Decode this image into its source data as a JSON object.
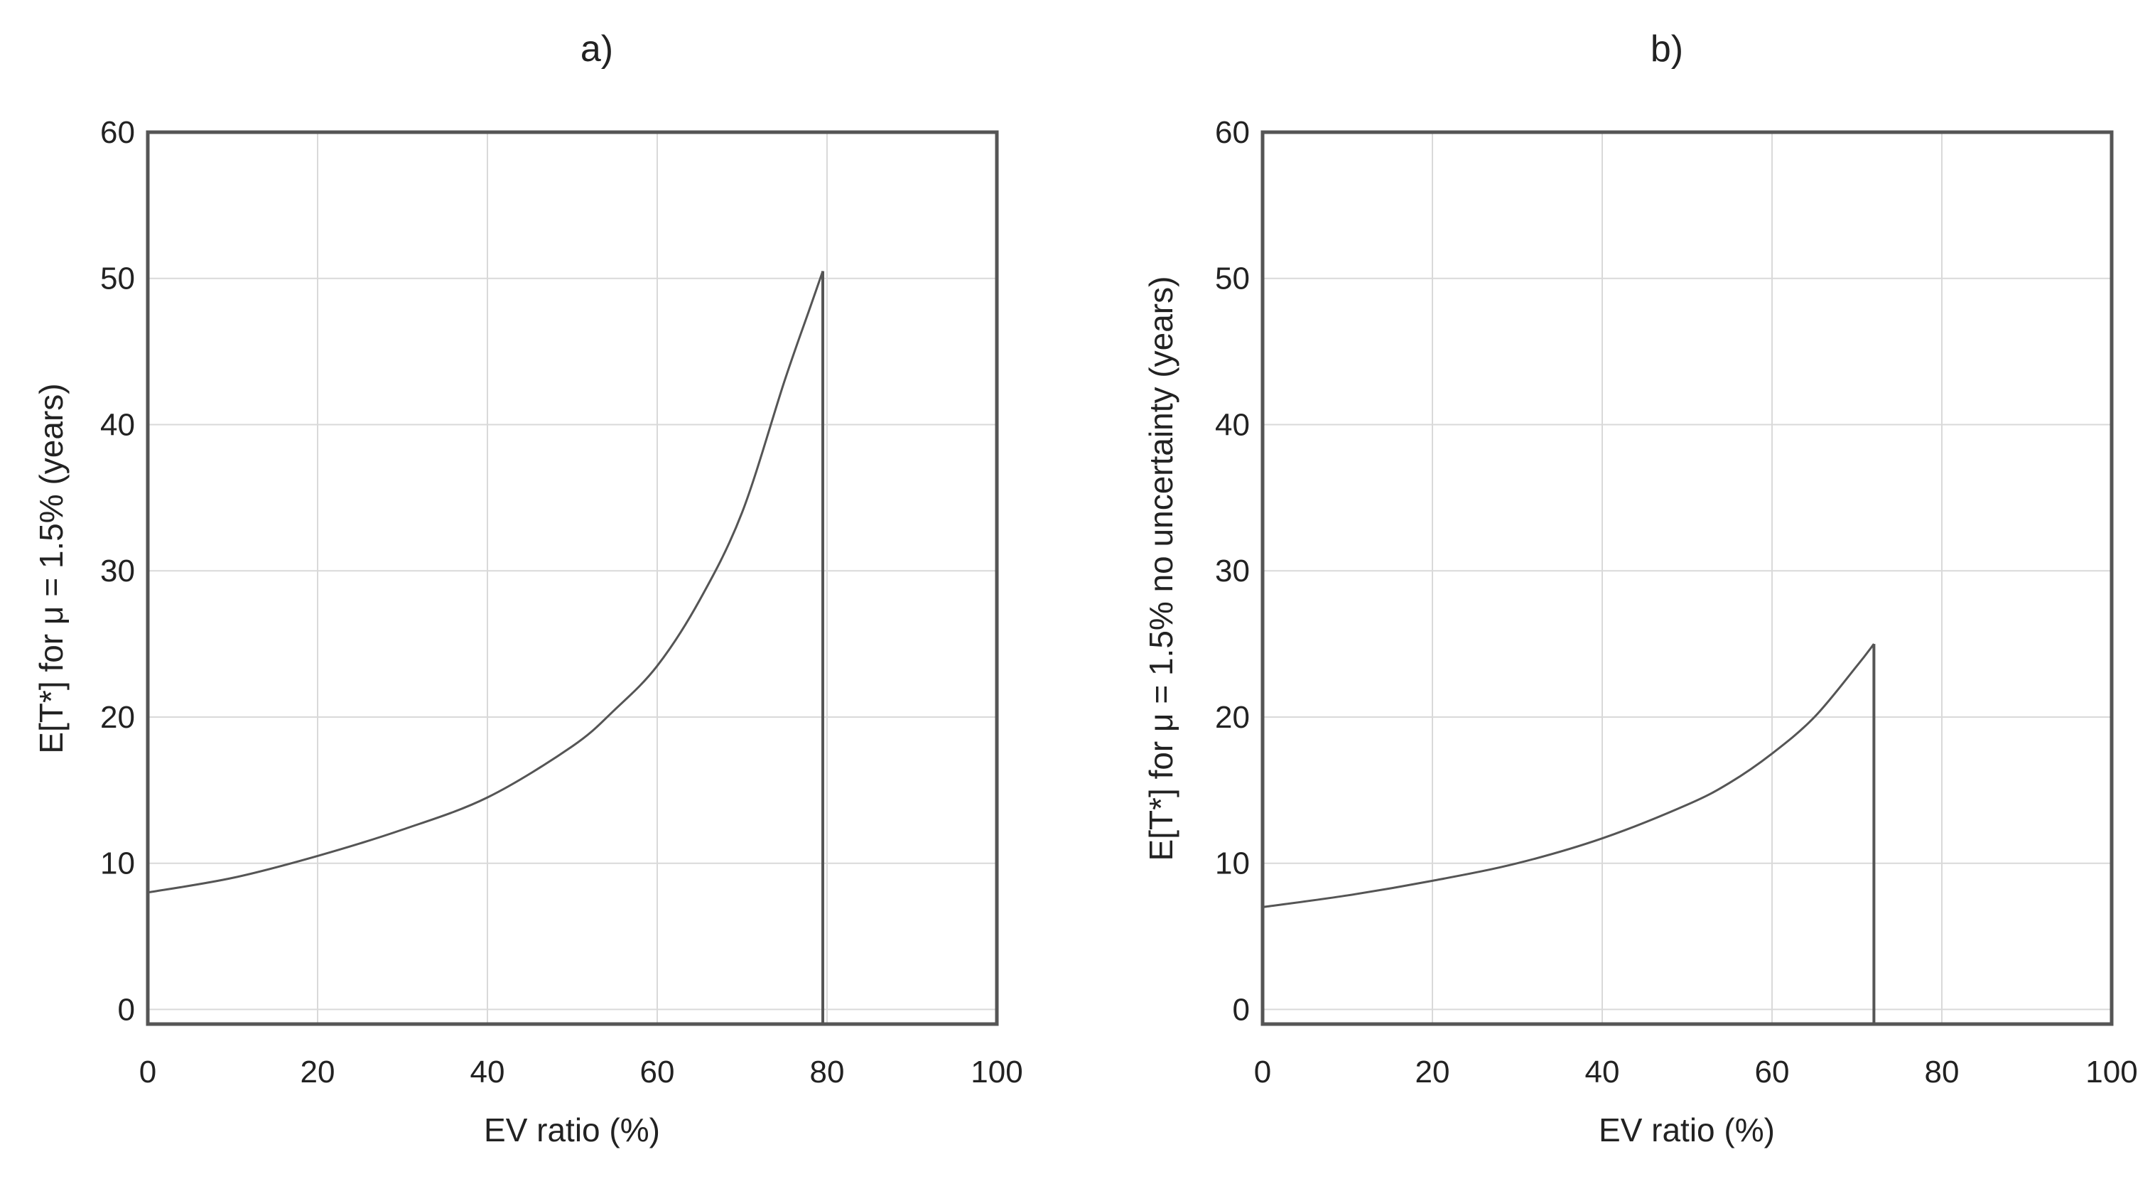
{
  "chart_data": [
    {
      "type": "line",
      "title": "a)",
      "xlabel": "EV ratio (%)",
      "ylabel": "E[T*] for μ = 1.5% (years)",
      "xlim": [
        0,
        100
      ],
      "ylim": [
        -1,
        60
      ],
      "xticks": [
        0,
        20,
        40,
        60,
        80,
        100
      ],
      "yticks": [
        0,
        10,
        20,
        30,
        40,
        50,
        60
      ],
      "grid": true,
      "series": [
        {
          "name": "E[T*]",
          "x": [
            0,
            10,
            20,
            30,
            40,
            50,
            55,
            60,
            65,
            70,
            75,
            78,
            79.5
          ],
          "y": [
            8,
            9,
            10.5,
            12.3,
            14.5,
            18,
            20.5,
            23.5,
            28,
            34,
            43,
            48,
            50.5
          ]
        }
      ],
      "cutoff_x": 79.5
    },
    {
      "type": "line",
      "title": "b)",
      "xlabel": "EV ratio (%)",
      "ylabel": "E[T*] for μ = 1.5% no uncertainty (years)",
      "xlim": [
        0,
        100
      ],
      "ylim": [
        -1,
        60
      ],
      "xticks": [
        0,
        20,
        40,
        60,
        80,
        100
      ],
      "yticks": [
        0,
        10,
        20,
        30,
        40,
        50,
        60
      ],
      "grid": true,
      "series": [
        {
          "name": "E[T*]",
          "x": [
            0,
            10,
            20,
            30,
            40,
            50,
            55,
            60,
            65,
            70,
            72
          ],
          "y": [
            7,
            7.8,
            8.8,
            10,
            11.7,
            14,
            15.5,
            17.5,
            20,
            23.5,
            25
          ]
        }
      ],
      "cutoff_x": 72
    }
  ]
}
